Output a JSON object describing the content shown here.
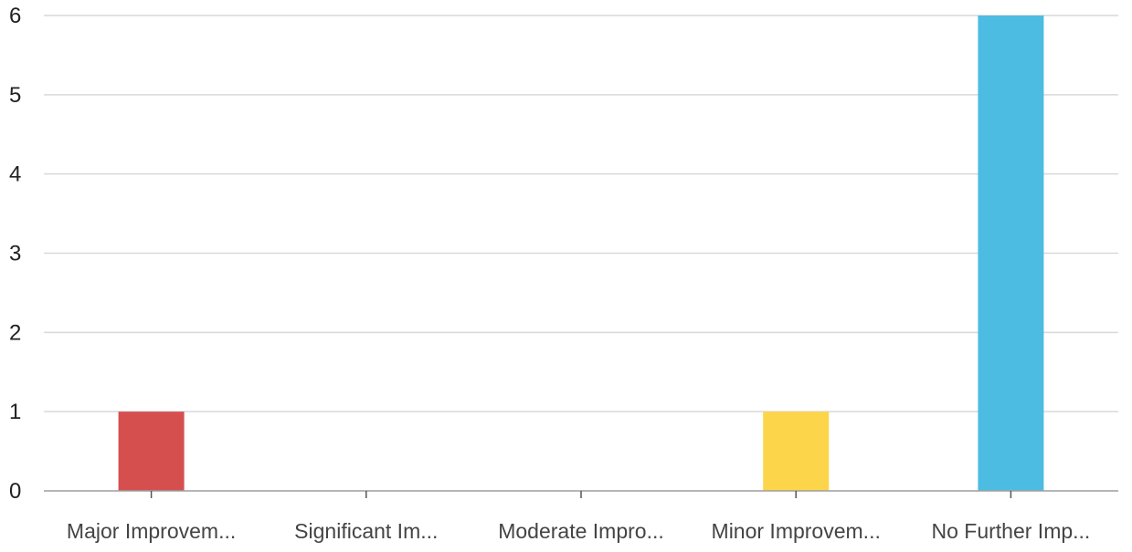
{
  "chart_data": {
    "type": "bar",
    "title": "",
    "xlabel": "",
    "ylabel": "",
    "categories": [
      "Major Improvem...",
      "Significant Im...",
      "Moderate Impro...",
      "Minor Improvem...",
      "No Further Imp..."
    ],
    "values": [
      1,
      0,
      0,
      1,
      6
    ],
    "colors": [
      "#d64f4f",
      "#d64f4f",
      "#d64f4f",
      "#fdd54a",
      "#4dbce2"
    ],
    "ylim": [
      0,
      6
    ],
    "yticks": [
      "0",
      "1",
      "2",
      "3",
      "4",
      "5",
      "6"
    ],
    "grid": true,
    "legend": "none"
  }
}
